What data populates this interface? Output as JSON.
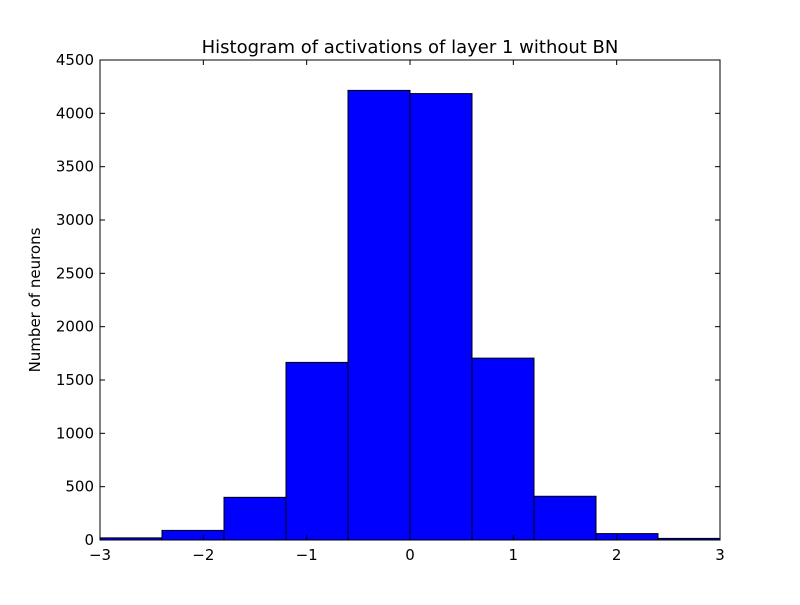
{
  "chart_data": {
    "type": "bar",
    "title": "Histogram of activations of layer 1  without BN",
    "xlabel": "",
    "ylabel": "Number of neurons",
    "xlim": [
      -3,
      3
    ],
    "ylim": [
      0,
      4500
    ],
    "bin_edges": [
      -3,
      -2.4,
      -1.8,
      -1.2,
      -0.6,
      0,
      0.6,
      1.2,
      1.8,
      2.4,
      3
    ],
    "values": [
      20,
      90,
      400,
      1665,
      4215,
      4185,
      1705,
      410,
      60,
      15
    ],
    "x_ticks": [
      -3,
      -2,
      -1,
      0,
      1,
      2,
      3
    ],
    "x_tick_labels": [
      "−3",
      "−2",
      "−1",
      "0",
      "1",
      "2",
      "3"
    ],
    "y_ticks": [
      0,
      500,
      1000,
      1500,
      2000,
      2500,
      3000,
      3500,
      4000,
      4500
    ],
    "y_tick_labels": [
      "0",
      "500",
      "1000",
      "1500",
      "2000",
      "2500",
      "3000",
      "3500",
      "4000",
      "4500"
    ],
    "bar_color": "#0000ff",
    "edge_color": "#000000",
    "grid": false,
    "legend": "none"
  }
}
